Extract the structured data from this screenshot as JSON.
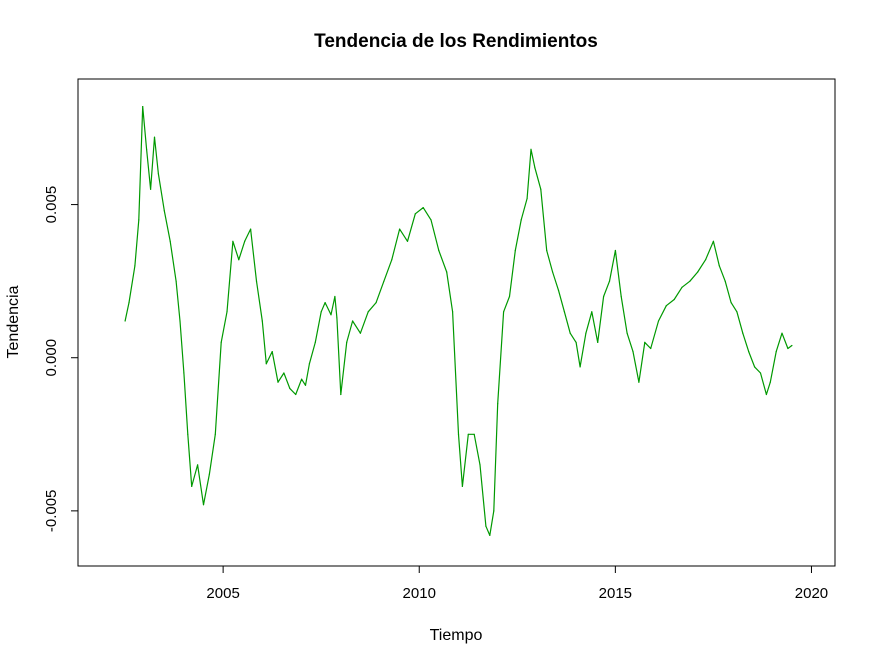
{
  "chart_data": {
    "type": "line",
    "title": "Tendencia de los Rendimientos",
    "xlabel": "Tiempo",
    "ylabel": "Tendencia",
    "xlim": [
      2001.3,
      2020.6
    ],
    "ylim": [
      -0.0068,
      0.0091
    ],
    "x_ticks": [
      2005,
      2010,
      2015,
      2020
    ],
    "x_tick_labels": [
      "2005",
      "2010",
      "2015",
      "2020"
    ],
    "y_ticks": [
      -0.005,
      0.0,
      0.005
    ],
    "y_tick_labels": [
      "-0.005",
      "0.000",
      "0.005"
    ],
    "grid": false,
    "legend": "none",
    "series_color": "#009900",
    "series": [
      {
        "x": [
          2002.5,
          2002.6,
          2002.75,
          2002.85,
          2002.95,
          2003.05,
          2003.15,
          2003.25,
          2003.35,
          2003.5,
          2003.65,
          2003.8,
          2003.9,
          2004.0,
          2004.1,
          2004.2,
          2004.35,
          2004.5,
          2004.65,
          2004.8,
          2004.95,
          2005.1,
          2005.25,
          2005.4,
          2005.55,
          2005.7,
          2005.85,
          2006.0,
          2006.1,
          2006.25,
          2006.4,
          2006.55,
          2006.7,
          2006.85,
          2007.0,
          2007.1,
          2007.2,
          2007.35,
          2007.5,
          2007.6,
          2007.75,
          2007.85,
          2007.9,
          2008.0,
          2008.15,
          2008.3,
          2008.5,
          2008.7,
          2008.9,
          2009.1,
          2009.3,
          2009.5,
          2009.7,
          2009.9,
          2010.1,
          2010.3,
          2010.5,
          2010.7,
          2010.85,
          2011.0,
          2011.1,
          2011.25,
          2011.4,
          2011.55,
          2011.7,
          2011.8,
          2011.9,
          2012.0,
          2012.15,
          2012.3,
          2012.45,
          2012.6,
          2012.75,
          2012.85,
          2012.95,
          2013.1,
          2013.25,
          2013.4,
          2013.55,
          2013.7,
          2013.85,
          2014.0,
          2014.1,
          2014.25,
          2014.4,
          2014.55,
          2014.7,
          2014.85,
          2015.0,
          2015.15,
          2015.3,
          2015.45,
          2015.6,
          2015.75,
          2015.9,
          2016.1,
          2016.3,
          2016.5,
          2016.7,
          2016.9,
          2017.1,
          2017.3,
          2017.5,
          2017.65,
          2017.8,
          2017.95,
          2018.1,
          2018.25,
          2018.4,
          2018.55,
          2018.7,
          2018.85,
          2018.95,
          2019.1,
          2019.25,
          2019.4,
          2019.5
        ],
        "y": [
          0.0012,
          0.0018,
          0.003,
          0.0045,
          0.0082,
          0.0068,
          0.0055,
          0.0072,
          0.006,
          0.0048,
          0.0038,
          0.0025,
          0.0012,
          -0.0005,
          -0.0025,
          -0.0042,
          -0.0035,
          -0.0048,
          -0.0038,
          -0.0025,
          0.0005,
          0.0015,
          0.0038,
          0.0032,
          0.0038,
          0.0042,
          0.0025,
          0.0012,
          -0.0002,
          0.0002,
          -0.0008,
          -0.0005,
          -0.001,
          -0.0012,
          -0.0007,
          -0.0009,
          -0.0002,
          0.0005,
          0.0015,
          0.0018,
          0.0014,
          0.002,
          0.0013,
          -0.0012,
          0.0005,
          0.0012,
          0.0008,
          0.0015,
          0.0018,
          0.0025,
          0.0032,
          0.0042,
          0.0038,
          0.0047,
          0.0049,
          0.0045,
          0.0035,
          0.0028,
          0.0015,
          -0.0025,
          -0.0042,
          -0.0025,
          -0.0025,
          -0.0035,
          -0.0055,
          -0.0058,
          -0.005,
          -0.0015,
          0.0015,
          0.002,
          0.0035,
          0.0045,
          0.0052,
          0.0068,
          0.0062,
          0.0055,
          0.0035,
          0.0028,
          0.0022,
          0.0015,
          0.0008,
          0.0005,
          -0.0003,
          0.0008,
          0.0015,
          0.0005,
          0.002,
          0.0025,
          0.0035,
          0.002,
          0.0008,
          0.0002,
          -0.0008,
          0.0005,
          0.0003,
          0.0012,
          0.0017,
          0.0019,
          0.0023,
          0.0025,
          0.0028,
          0.0032,
          0.0038,
          0.003,
          0.0025,
          0.0018,
          0.0015,
          0.0008,
          0.0002,
          -0.0003,
          -0.0005,
          -0.0012,
          -0.0008,
          0.0002,
          0.0008,
          0.0003,
          0.0004
        ]
      }
    ]
  }
}
